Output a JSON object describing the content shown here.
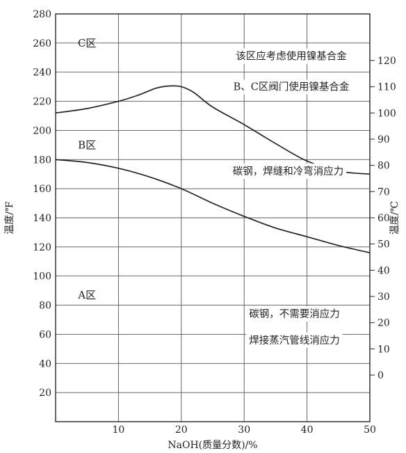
{
  "chart_data": {
    "type": "line",
    "xlabel": "NaOH(质量分数)/%",
    "ylabel_left": "温度/℉",
    "ylabel_right": "温度/℃",
    "xlim": [
      0,
      50
    ],
    "ylim_left_F": [
      0,
      280
    ],
    "x_ticks": [
      10,
      20,
      30,
      40,
      50
    ],
    "y_ticks_left_F": [
      20,
      40,
      60,
      80,
      100,
      120,
      140,
      160,
      180,
      200,
      220,
      240,
      260,
      280
    ],
    "y_ticks_right_C": [
      0,
      10,
      20,
      30,
      40,
      50,
      60,
      70,
      80,
      90,
      100,
      110,
      120
    ],
    "grid": true,
    "series": [
      {
        "x": [
          0,
          5,
          10,
          13,
          16,
          18,
          20,
          22,
          25,
          30,
          35,
          40,
          45,
          50
        ],
        "y": [
          212,
          215,
          220,
          224,
          229,
          230.5,
          230,
          226,
          216,
          204,
          191,
          179,
          172,
          170
        ]
      },
      {
        "x": [
          0,
          5,
          10,
          15,
          20,
          25,
          30,
          35,
          40,
          45,
          50
        ],
        "y": [
          180,
          178,
          174,
          168,
          160,
          150,
          141,
          133,
          127,
          121,
          116
        ]
      }
    ],
    "zones": [
      {
        "label": "A区",
        "x": 5,
        "y": 87
      },
      {
        "label": "B区",
        "x": 5,
        "y": 190
      },
      {
        "label": "C区",
        "x": 5,
        "y": 260
      }
    ],
    "annotations": [
      {
        "text": "该区应考虑使用镍基合金",
        "x": 37.5,
        "y": 251
      },
      {
        "text": "B、C区阀门使用镍基合金",
        "x": 37.5,
        "y": 230
      },
      {
        "text": "碳钢，焊缝和冷弯消应力",
        "x": 37,
        "y": 172
      },
      {
        "text": "碳钢，不需要消应力",
        "x": 38,
        "y": 74
      },
      {
        "text": "焊接蒸汽管线消应力",
        "x": 38,
        "y": 56
      }
    ]
  }
}
